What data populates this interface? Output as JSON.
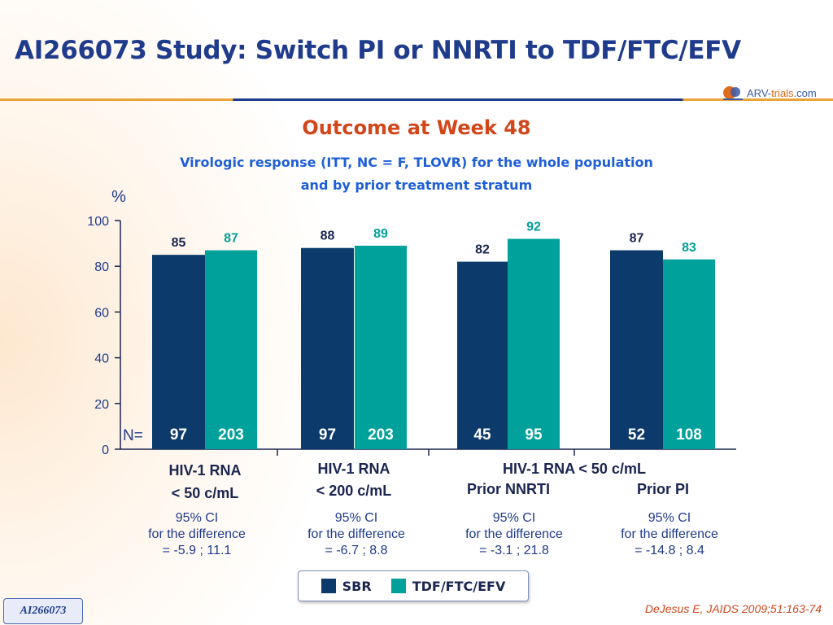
{
  "slide": {
    "title": "AI266073 Study: Switch PI or NNRTI to TDF/FTC/EFV",
    "subtitle": "Outcome at Week 48",
    "description_line1": "Virologic response (ITT, NC = F, TLOVR) for the whole population",
    "description_line2": "and by prior treatment stratum",
    "citation": "DeJesus E, JAIDS 2009;51:163-74",
    "study_tag": "AI266073",
    "logo": {
      "text_main": "ARV-",
      "text_accent": "trials",
      "text_suffix": ".com"
    }
  },
  "chart_data": {
    "type": "bar",
    "title": "",
    "ylabel": "%",
    "ylim": [
      0,
      100
    ],
    "yticks": [
      0,
      20,
      40,
      60,
      80,
      100
    ],
    "n_label": "N=",
    "groups": [
      {
        "label_lines": [
          "HIV-1 RNA",
          "< 50 c/mL"
        ],
        "values": [
          85,
          87
        ],
        "n": [
          "97",
          "203"
        ],
        "ci_lines": [
          "95% CI",
          "for the difference",
          "= -5.9 ; 11.1"
        ]
      },
      {
        "label_lines": [
          "HIV-1 RNA",
          "< 200 c/mL"
        ],
        "values": [
          88,
          89
        ],
        "n": [
          "97",
          "203"
        ],
        "ci_lines": [
          "95% CI",
          "for the difference",
          "= -6.7 ; 8.8"
        ]
      },
      {
        "label_lines": [
          "Prior NNRTI"
        ],
        "values": [
          82,
          92
        ],
        "n": [
          "45",
          "95"
        ],
        "ci_lines": [
          "95% CI",
          "for the difference",
          "= -3.1 ; 21.8"
        ]
      },
      {
        "label_lines": [
          "Prior PI"
        ],
        "values": [
          87,
          83
        ],
        "n": [
          "52",
          "108"
        ],
        "ci_lines": [
          "95% CI",
          "for the difference",
          "= -14.8 ; 8.4"
        ]
      }
    ],
    "shared_label": "HIV-1 RNA < 50 c/mL",
    "series": [
      {
        "name": "SBR",
        "color": "#0b3a6b"
      },
      {
        "name": "TDF/FTC/EFV",
        "color": "#00a19a"
      }
    ],
    "grid": false,
    "legend_position": "bottom-center"
  }
}
